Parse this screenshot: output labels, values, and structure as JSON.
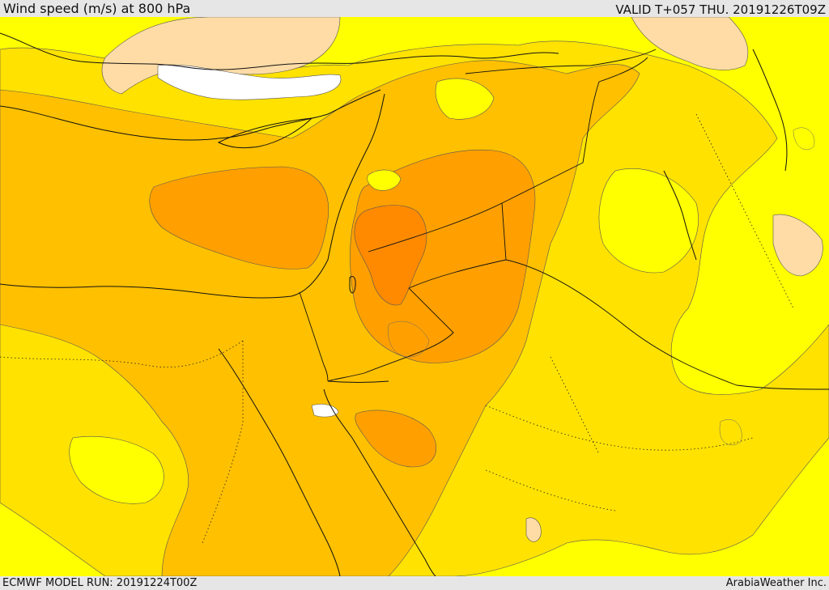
{
  "header": {
    "title": "Wind speed (m/s) at 800 hPa",
    "valid": "VALID T+057 THU. 20191226T09Z"
  },
  "footer": {
    "model_run": "ECMWF MODEL RUN: 20191224T00Z",
    "credit": "ArabiaWeather Inc."
  },
  "colors": {
    "bright_yellow": "#ffff00",
    "gold_yellow": "#ffe200",
    "light_orange": "#ffc000",
    "orange": "#ffa000",
    "dark_orange": "#ff8a00",
    "peach": "#ffdca6",
    "white": "#ffffff",
    "border": "#111111"
  }
}
